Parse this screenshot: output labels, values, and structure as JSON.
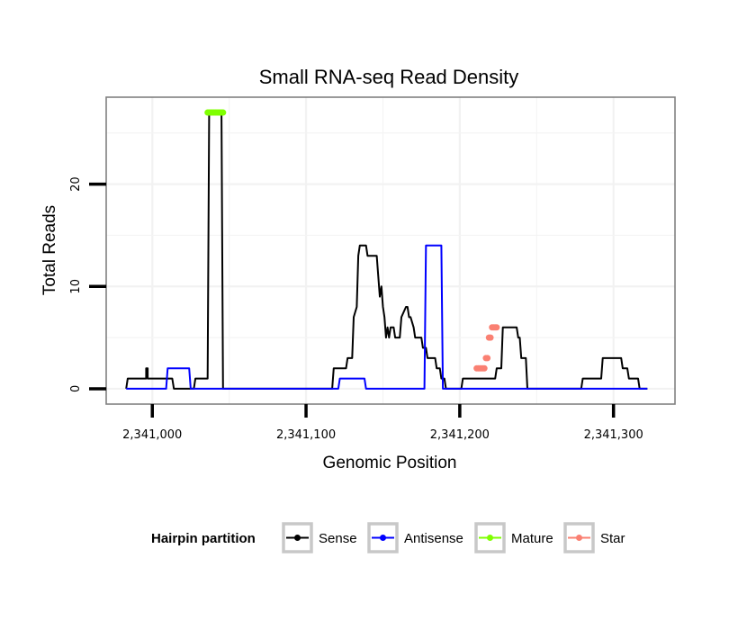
{
  "chart_data": {
    "type": "line",
    "title": "Small RNA-seq Read Density",
    "xlabel": "Genomic Position",
    "ylabel": "Total Reads",
    "xlim": [
      2340970,
      2341340
    ],
    "ylim": [
      -1.5,
      28.5
    ],
    "x_ticks": [
      2341000,
      2341100,
      2341200,
      2341300
    ],
    "x_tick_labels": [
      "2,341,000",
      "2,341,100",
      "2,341,200",
      "2,341,300"
    ],
    "y_ticks": [
      0,
      10,
      20
    ],
    "y_tick_labels": [
      "0",
      "10",
      "20"
    ],
    "grid": true,
    "legend": {
      "title": "Hairpin partition",
      "position": "bottom",
      "entries": [
        {
          "name": "Sense",
          "color": "#000000"
        },
        {
          "name": "Antisense",
          "color": "#0000ff"
        },
        {
          "name": "Mature",
          "color": "#7fff00"
        },
        {
          "name": "Star",
          "color": "#fa8072"
        }
      ]
    },
    "series": [
      {
        "name": "Sense",
        "color": "#000000",
        "style": "line",
        "x": [
          2340983,
          2340984,
          2340996,
          2340996,
          2340997,
          2340997,
          2341013,
          2341014,
          2341027,
          2341028,
          2341036,
          2341037,
          2341045,
          2341046,
          2341117,
          2341118,
          2341126,
          2341127,
          2341130,
          2341131,
          2341133,
          2341134,
          2341135,
          2341136,
          2341139,
          2341140,
          2341146,
          2341147,
          2341148,
          2341149,
          2341150,
          2341151,
          2341152,
          2341153,
          2341154,
          2341155,
          2341157,
          2341158,
          2341161,
          2341162,
          2341165,
          2341166,
          2341167,
          2341168,
          2341170,
          2341171,
          2341175,
          2341176,
          2341178,
          2341179,
          2341184,
          2341185,
          2341187,
          2341188,
          2341190,
          2341191,
          2341201,
          2341202,
          2341223,
          2341224,
          2341227,
          2341228,
          2341237,
          2341238,
          2341239,
          2341240,
          2341243,
          2341244,
          2341279,
          2341280,
          2341292,
          2341293,
          2341305,
          2341306,
          2341309,
          2341310,
          2341316,
          2341317,
          2341322
        ],
        "values": [
          0,
          1,
          1,
          2,
          2,
          1,
          1,
          0,
          0,
          1,
          1,
          27,
          27,
          0,
          0,
          2,
          2,
          3,
          3,
          7,
          8,
          13,
          14,
          14,
          14,
          13,
          13,
          11,
          9,
          10,
          8,
          7,
          5,
          6,
          5,
          6,
          6,
          5,
          5,
          7,
          8,
          8,
          7,
          7,
          6,
          5,
          5,
          4,
          4,
          3,
          3,
          2,
          2,
          1,
          1,
          0,
          0,
          1,
          1,
          2,
          2,
          6,
          6,
          5,
          5,
          3,
          3,
          0,
          0,
          1,
          1,
          3,
          3,
          2,
          2,
          1,
          1,
          0,
          0
        ]
      },
      {
        "name": "Antisense",
        "color": "#0000ff",
        "style": "line",
        "x": [
          2340983,
          2340992,
          2341009,
          2341010,
          2341024,
          2341025,
          2341121,
          2341122,
          2341138,
          2341139,
          2341177,
          2341178,
          2341188,
          2341189,
          2341322
        ],
        "values": [
          0,
          0,
          0,
          2,
          2,
          0,
          0,
          1,
          1,
          0,
          0,
          14,
          14,
          0,
          0
        ]
      },
      {
        "name": "Mature",
        "color": "#7fff00",
        "style": "points",
        "x": [
          2341036,
          2341037,
          2341038,
          2341039,
          2341040,
          2341041,
          2341042,
          2341043,
          2341044,
          2341045,
          2341046
        ],
        "values": [
          27,
          27,
          27,
          27,
          27,
          27,
          27,
          27,
          27,
          27,
          27
        ]
      },
      {
        "name": "Star",
        "color": "#fa8072",
        "style": "points",
        "x": [
          2341211,
          2341212,
          2341213,
          2341214,
          2341215,
          2341216,
          2341217,
          2341218,
          2341219,
          2341220,
          2341221,
          2341222,
          2341223,
          2341224
        ],
        "values": [
          2,
          2,
          2,
          2,
          2,
          2,
          3,
          3,
          5,
          5,
          6,
          6,
          6,
          6
        ]
      }
    ]
  }
}
